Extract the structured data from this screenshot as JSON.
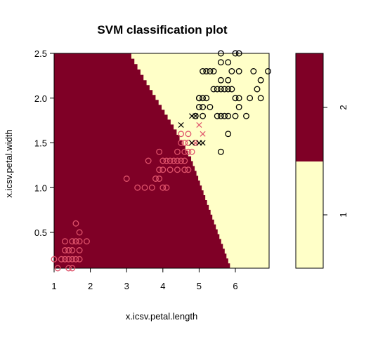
{
  "chart_data": {
    "type": "scatter",
    "title": "SVM classification plot",
    "xlabel": "x.icsv.petal.length",
    "ylabel": "x.icsv.petal.width",
    "xlim": [
      1,
      6.93
    ],
    "ylim": [
      0.1,
      2.5
    ],
    "x_ticks": [
      "1",
      "2",
      "3",
      "4",
      "5",
      "6"
    ],
    "y_ticks": [
      "0.5",
      "1.0",
      "1.5",
      "2.0",
      "2.5"
    ],
    "grid": false,
    "colors": {
      "region_class_2": "#7F0026",
      "region_class_1": "#FFFFC8",
      "points_class_1": "#DF536B",
      "points_class_2": "#000000"
    },
    "decision_boundary": [
      {
        "x": 3.13,
        "y": 2.5
      },
      {
        "x": 3.55,
        "y": 2.2
      },
      {
        "x": 4.38,
        "y": 1.65
      },
      {
        "x": 4.78,
        "y": 1.35
      },
      {
        "x": 5.9,
        "y": 0.1
      }
    ],
    "legend": {
      "position": "right",
      "levels": [
        {
          "label": "2",
          "color": "#7F0026"
        },
        {
          "label": "1",
          "color": "#FFFFC8"
        }
      ]
    },
    "series": [
      {
        "class": "1",
        "color": "#DF536B",
        "points": [
          {
            "x": 1.0,
            "y": 0.2,
            "marker": "o"
          },
          {
            "x": 1.2,
            "y": 0.2,
            "marker": "o"
          },
          {
            "x": 1.3,
            "y": 0.2,
            "marker": "o"
          },
          {
            "x": 1.4,
            "y": 0.2,
            "marker": "o"
          },
          {
            "x": 1.5,
            "y": 0.2,
            "marker": "o"
          },
          {
            "x": 1.6,
            "y": 0.2,
            "marker": "o"
          },
          {
            "x": 1.7,
            "y": 0.2,
            "marker": "o"
          },
          {
            "x": 1.1,
            "y": 0.1,
            "marker": "o"
          },
          {
            "x": 1.4,
            "y": 0.1,
            "marker": "o"
          },
          {
            "x": 1.5,
            "y": 0.1,
            "marker": "o"
          },
          {
            "x": 1.3,
            "y": 0.3,
            "marker": "o"
          },
          {
            "x": 1.4,
            "y": 0.3,
            "marker": "o"
          },
          {
            "x": 1.5,
            "y": 0.3,
            "marker": "o"
          },
          {
            "x": 1.7,
            "y": 0.3,
            "marker": "o"
          },
          {
            "x": 1.3,
            "y": 0.4,
            "marker": "o"
          },
          {
            "x": 1.5,
            "y": 0.4,
            "marker": "o"
          },
          {
            "x": 1.6,
            "y": 0.4,
            "marker": "o"
          },
          {
            "x": 1.7,
            "y": 0.4,
            "marker": "o"
          },
          {
            "x": 1.9,
            "y": 0.4,
            "marker": "o"
          },
          {
            "x": 1.7,
            "y": 0.5,
            "marker": "o"
          },
          {
            "x": 1.6,
            "y": 0.6,
            "marker": "o"
          },
          {
            "x": 3.0,
            "y": 1.1,
            "marker": "o"
          },
          {
            "x": 3.3,
            "y": 1.0,
            "marker": "o"
          },
          {
            "x": 3.5,
            "y": 1.0,
            "marker": "o"
          },
          {
            "x": 3.7,
            "y": 1.0,
            "marker": "o"
          },
          {
            "x": 3.9,
            "y": 1.1,
            "marker": "o"
          },
          {
            "x": 4.0,
            "y": 1.0,
            "marker": "o"
          },
          {
            "x": 3.6,
            "y": 1.3,
            "marker": "o"
          },
          {
            "x": 3.8,
            "y": 1.1,
            "marker": "o"
          },
          {
            "x": 3.9,
            "y": 1.2,
            "marker": "o"
          },
          {
            "x": 3.9,
            "y": 1.4,
            "marker": "o"
          },
          {
            "x": 4.0,
            "y": 1.2,
            "marker": "o"
          },
          {
            "x": 4.0,
            "y": 1.3,
            "marker": "o"
          },
          {
            "x": 4.1,
            "y": 1.3,
            "marker": "o"
          },
          {
            "x": 4.2,
            "y": 1.2,
            "marker": "o"
          },
          {
            "x": 4.2,
            "y": 1.3,
            "marker": "o"
          },
          {
            "x": 4.3,
            "y": 1.3,
            "marker": "o"
          },
          {
            "x": 4.4,
            "y": 1.3,
            "marker": "o"
          },
          {
            "x": 4.4,
            "y": 1.2,
            "marker": "o"
          },
          {
            "x": 4.5,
            "y": 1.3,
            "marker": "o"
          },
          {
            "x": 4.6,
            "y": 1.2,
            "marker": "o"
          },
          {
            "x": 4.6,
            "y": 1.3,
            "marker": "o"
          },
          {
            "x": 4.7,
            "y": 1.2,
            "marker": "o"
          },
          {
            "x": 4.1,
            "y": 1.0,
            "marker": "o"
          },
          {
            "x": 4.4,
            "y": 1.4,
            "marker": "o"
          },
          {
            "x": 4.6,
            "y": 1.4,
            "marker": "o"
          },
          {
            "x": 4.7,
            "y": 1.4,
            "marker": "o"
          },
          {
            "x": 4.8,
            "y": 1.4,
            "marker": "o"
          },
          {
            "x": 4.5,
            "y": 1.5,
            "marker": "o"
          },
          {
            "x": 4.6,
            "y": 1.5,
            "marker": "o"
          },
          {
            "x": 4.7,
            "y": 1.5,
            "marker": "o"
          },
          {
            "x": 4.9,
            "y": 1.5,
            "marker": "o"
          },
          {
            "x": 4.5,
            "y": 1.6,
            "marker": "o"
          },
          {
            "x": 4.7,
            "y": 1.6,
            "marker": "o"
          },
          {
            "x": 5.1,
            "y": 1.6,
            "marker": "x"
          },
          {
            "x": 5.0,
            "y": 1.7,
            "marker": "x"
          },
          {
            "x": 4.9,
            "y": 1.5,
            "marker": "x"
          }
        ]
      },
      {
        "class": "2",
        "color": "#000000",
        "points": [
          {
            "x": 4.5,
            "y": 1.7,
            "marker": "x"
          },
          {
            "x": 4.8,
            "y": 1.8,
            "marker": "x"
          },
          {
            "x": 4.9,
            "y": 1.8,
            "marker": "x"
          },
          {
            "x": 4.8,
            "y": 1.5,
            "marker": "x"
          },
          {
            "x": 5.0,
            "y": 1.5,
            "marker": "x"
          },
          {
            "x": 5.1,
            "y": 1.5,
            "marker": "x"
          },
          {
            "x": 4.9,
            "y": 1.8,
            "marker": "o"
          },
          {
            "x": 5.6,
            "y": 1.4,
            "marker": "o"
          },
          {
            "x": 5.8,
            "y": 1.6,
            "marker": "o"
          },
          {
            "x": 5.0,
            "y": 1.9,
            "marker": "o"
          },
          {
            "x": 5.1,
            "y": 1.8,
            "marker": "o"
          },
          {
            "x": 5.1,
            "y": 1.9,
            "marker": "o"
          },
          {
            "x": 5.1,
            "y": 2.0,
            "marker": "o"
          },
          {
            "x": 5.0,
            "y": 2.0,
            "marker": "o"
          },
          {
            "x": 5.2,
            "y": 2.0,
            "marker": "o"
          },
          {
            "x": 5.3,
            "y": 1.9,
            "marker": "o"
          },
          {
            "x": 5.5,
            "y": 1.8,
            "marker": "o"
          },
          {
            "x": 5.6,
            "y": 1.8,
            "marker": "o"
          },
          {
            "x": 5.7,
            "y": 1.8,
            "marker": "o"
          },
          {
            "x": 5.8,
            "y": 1.8,
            "marker": "o"
          },
          {
            "x": 6.0,
            "y": 1.8,
            "marker": "o"
          },
          {
            "x": 6.1,
            "y": 1.9,
            "marker": "o"
          },
          {
            "x": 5.4,
            "y": 2.1,
            "marker": "o"
          },
          {
            "x": 5.5,
            "y": 2.1,
            "marker": "o"
          },
          {
            "x": 5.6,
            "y": 2.1,
            "marker": "o"
          },
          {
            "x": 5.7,
            "y": 2.1,
            "marker": "o"
          },
          {
            "x": 5.8,
            "y": 2.1,
            "marker": "o"
          },
          {
            "x": 6.6,
            "y": 2.1,
            "marker": "o"
          },
          {
            "x": 5.8,
            "y": 2.2,
            "marker": "o"
          },
          {
            "x": 6.7,
            "y": 2.2,
            "marker": "o"
          },
          {
            "x": 5.1,
            "y": 2.3,
            "marker": "o"
          },
          {
            "x": 5.2,
            "y": 2.3,
            "marker": "o"
          },
          {
            "x": 5.3,
            "y": 2.3,
            "marker": "o"
          },
          {
            "x": 5.4,
            "y": 2.3,
            "marker": "o"
          },
          {
            "x": 5.6,
            "y": 2.4,
            "marker": "o"
          },
          {
            "x": 5.9,
            "y": 2.3,
            "marker": "o"
          },
          {
            "x": 6.1,
            "y": 2.3,
            "marker": "o"
          },
          {
            "x": 6.9,
            "y": 2.3,
            "marker": "o"
          },
          {
            "x": 5.6,
            "y": 2.5,
            "marker": "o"
          },
          {
            "x": 5.8,
            "y": 2.4,
            "marker": "o"
          },
          {
            "x": 6.0,
            "y": 2.5,
            "marker": "o"
          },
          {
            "x": 6.1,
            "y": 2.5,
            "marker": "o"
          },
          {
            "x": 6.4,
            "y": 2.0,
            "marker": "o"
          },
          {
            "x": 6.3,
            "y": 1.8,
            "marker": "o"
          },
          {
            "x": 6.7,
            "y": 2.0,
            "marker": "o"
          },
          {
            "x": 6.1,
            "y": 2.0,
            "marker": "o"
          },
          {
            "x": 5.9,
            "y": 2.1,
            "marker": "o"
          },
          {
            "x": 6.0,
            "y": 2.0,
            "marker": "o"
          },
          {
            "x": 5.0,
            "y": 2.0,
            "marker": "o"
          },
          {
            "x": 5.6,
            "y": 2.2,
            "marker": "o"
          },
          {
            "x": 6.5,
            "y": 2.3,
            "marker": "o"
          }
        ]
      }
    ]
  }
}
